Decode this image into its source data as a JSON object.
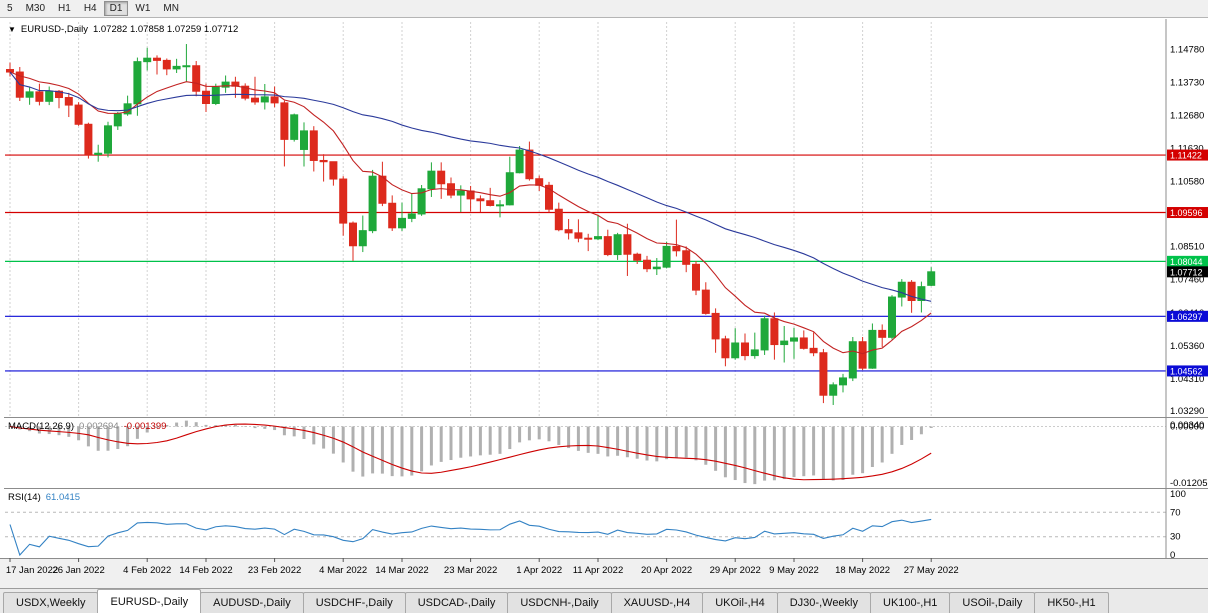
{
  "timeframe_toolbar": {
    "buttons": [
      {
        "label": "5",
        "active": false
      },
      {
        "label": "M30",
        "active": false
      },
      {
        "label": "H1",
        "active": false
      },
      {
        "label": "H4",
        "active": false
      },
      {
        "label": "D1",
        "active": true
      },
      {
        "label": "W1",
        "active": false
      },
      {
        "label": "MN",
        "active": false
      }
    ]
  },
  "main_chart": {
    "collapse_icon": "▼",
    "title": "EURUSD-,Daily",
    "ohlc_text": "1.07282 1.07858 1.07259 1.07712"
  },
  "price_axis_ticks": [
    "1.14780",
    "1.13730",
    "1.12680",
    "1.11630",
    "1.10580",
    "1.09530",
    "1.08510",
    "1.07460",
    "1.06410",
    "1.05360",
    "1.04310",
    "1.03290"
  ],
  "horizontal_levels": [
    {
      "price": 1.11422,
      "label": "1.11422",
      "color": "#d40000"
    },
    {
      "price": 1.09596,
      "label": "1.09596",
      "color": "#d40000"
    },
    {
      "price": 1.08044,
      "label": "1.08044",
      "color": "#00c24a"
    },
    {
      "price": 1.06297,
      "label": "1.06297",
      "color": "#0b0bd6"
    },
    {
      "price": 1.04562,
      "label": "1.04562",
      "color": "#0b0bd6"
    }
  ],
  "current_price_tag": {
    "label": "1.07712",
    "price": 1.07712,
    "color": "#000000"
  },
  "macd_panel": {
    "name": "MACD(12,26,9)",
    "main_value": "0.002694",
    "signal_value": "-0.001399",
    "axis_ticks": [
      "0.00340",
      "0.00000",
      "-0.01205"
    ]
  },
  "rsi_panel": {
    "name": "RSI(14)",
    "value": "61.0415",
    "axis_ticks": [
      "100",
      "70",
      "30",
      "0"
    ]
  },
  "bottom_tabs": [
    {
      "label": "USDX,Weekly",
      "active": false
    },
    {
      "label": "EURUSD-,Daily",
      "active": true
    },
    {
      "label": "AUDUSD-,Daily",
      "active": false
    },
    {
      "label": "USDCHF-,Daily",
      "active": false
    },
    {
      "label": "USDCAD-,Daily",
      "active": false
    },
    {
      "label": "USDCNH-,Daily",
      "active": false
    },
    {
      "label": "XAUUSD-,H4",
      "active": false
    },
    {
      "label": "UKOil-,H4",
      "active": false
    },
    {
      "label": "DJ30-,Weekly",
      "active": false
    },
    {
      "label": "UK100-,H1",
      "active": false
    },
    {
      "label": "USOil-,Daily",
      "active": false
    },
    {
      "label": "HK50-,H1",
      "active": false
    }
  ],
  "chart_data": {
    "type": "candlestick",
    "symbol": "EURUSD-",
    "timeframe": "Daily",
    "y_range": [
      1.0313,
      1.1565
    ],
    "colors": {
      "up": "#1fa83a",
      "down": "#dd2a1d"
    },
    "x_ticks": [
      {
        "i": 0,
        "label": "17 Jan 2022"
      },
      {
        "i": 7,
        "label": "26 Jan 2022"
      },
      {
        "i": 14,
        "label": "4 Feb 2022"
      },
      {
        "i": 20,
        "label": "14 Feb 2022"
      },
      {
        "i": 27,
        "label": "23 Feb 2022"
      },
      {
        "i": 34,
        "label": "4 Mar 2022"
      },
      {
        "i": 40,
        "label": "14 Mar 2022"
      },
      {
        "i": 47,
        "label": "23 Mar 2022"
      },
      {
        "i": 54,
        "label": "1 Apr 2022"
      },
      {
        "i": 60,
        "label": "11 Apr 2022"
      },
      {
        "i": 67,
        "label": "20 Apr 2022"
      },
      {
        "i": 74,
        "label": "29 Apr 2022"
      },
      {
        "i": 80,
        "label": "9 May 2022"
      },
      {
        "i": 87,
        "label": "18 May 2022"
      },
      {
        "i": 94,
        "label": "27 May 2022"
      }
    ],
    "overlays": [
      {
        "type": "ma",
        "period": 12,
        "method": "ema",
        "color": "#c22222"
      },
      {
        "type": "ma",
        "period": 40,
        "method": "sma",
        "color": "#2b3a9b"
      }
    ],
    "panes": [
      {
        "type": "macd",
        "fast": 12,
        "slow": 26,
        "signal": 9,
        "histogram_color": "#b0b0b0",
        "signal_color": "#cc0000",
        "last_values": [
          0.002694,
          -0.001399
        ]
      },
      {
        "type": "rsi",
        "period": 14,
        "color": "#3382c4",
        "levels": [
          70,
          30
        ],
        "last_value": 61.0415
      }
    ],
    "candles_ohlc": [
      [
        1.1414,
        1.1436,
        1.1392,
        1.1406
      ],
      [
        1.1406,
        1.1422,
        1.1314,
        1.1326
      ],
      [
        1.1326,
        1.1357,
        1.1302,
        1.1343
      ],
      [
        1.1343,
        1.1369,
        1.13,
        1.1313
      ],
      [
        1.1313,
        1.136,
        1.1301,
        1.1345
      ],
      [
        1.1345,
        1.1349,
        1.1291,
        1.1325
      ],
      [
        1.1325,
        1.134,
        1.1263,
        1.1301
      ],
      [
        1.1301,
        1.131,
        1.1235,
        1.124
      ],
      [
        1.124,
        1.1245,
        1.1131,
        1.1144
      ],
      [
        1.1144,
        1.1175,
        1.1121,
        1.1148
      ],
      [
        1.1148,
        1.1248,
        1.1135,
        1.1235
      ],
      [
        1.1235,
        1.1279,
        1.1222,
        1.1273
      ],
      [
        1.1273,
        1.1331,
        1.1267,
        1.1305
      ],
      [
        1.1305,
        1.1452,
        1.1267,
        1.1439
      ],
      [
        1.1439,
        1.1483,
        1.1411,
        1.145
      ],
      [
        1.145,
        1.1459,
        1.1398,
        1.1443
      ],
      [
        1.1443,
        1.1449,
        1.1396,
        1.1416
      ],
      [
        1.1416,
        1.1448,
        1.1403,
        1.1424
      ],
      [
        1.1424,
        1.1495,
        1.1375,
        1.1426
      ],
      [
        1.1426,
        1.1441,
        1.1329,
        1.1345
      ],
      [
        1.1345,
        1.1369,
        1.1279,
        1.1306
      ],
      [
        1.1306,
        1.1369,
        1.1301,
        1.1358
      ],
      [
        1.1358,
        1.1395,
        1.134,
        1.1374
      ],
      [
        1.1374,
        1.1391,
        1.1324,
        1.1361
      ],
      [
        1.1361,
        1.137,
        1.1316,
        1.1323
      ],
      [
        1.1323,
        1.1391,
        1.1302,
        1.1311
      ],
      [
        1.1311,
        1.1368,
        1.1287,
        1.1327
      ],
      [
        1.1327,
        1.136,
        1.1294,
        1.1308
      ],
      [
        1.1308,
        1.1315,
        1.1106,
        1.1192
      ],
      [
        1.1192,
        1.1274,
        1.1185,
        1.127
      ],
      [
        1.116,
        1.1246,
        1.1106,
        1.1219
      ],
      [
        1.1219,
        1.1234,
        1.109,
        1.1125
      ],
      [
        1.1125,
        1.1145,
        1.1058,
        1.1121
      ],
      [
        1.1121,
        1.1121,
        1.1045,
        1.1066
      ],
      [
        1.1066,
        1.1075,
        1.0886,
        1.0926
      ],
      [
        1.0926,
        1.0931,
        1.0806,
        1.0854
      ],
      [
        1.0854,
        1.095,
        1.0834,
        1.0902
      ],
      [
        1.0902,
        1.1095,
        1.0894,
        1.1075
      ],
      [
        1.1075,
        1.1121,
        1.098,
        1.0989
      ],
      [
        1.0989,
        1.1014,
        1.0901,
        1.0911
      ],
      [
        1.0911,
        1.0991,
        1.0901,
        1.0941
      ],
      [
        1.0941,
        1.102,
        1.0929,
        1.0955
      ],
      [
        1.0955,
        1.1047,
        1.0949,
        1.1035
      ],
      [
        1.1035,
        1.1119,
        1.1009,
        1.1091
      ],
      [
        1.1091,
        1.1119,
        1.1003,
        1.1051
      ],
      [
        1.1051,
        1.1071,
        1.1005,
        1.1015
      ],
      [
        1.1015,
        1.1046,
        1.0961,
        1.1028
      ],
      [
        1.1028,
        1.1044,
        1.0963,
        1.1003
      ],
      [
        1.1003,
        1.1014,
        1.0961,
        1.0997
      ],
      [
        1.0997,
        1.1038,
        1.0979,
        1.0982
      ],
      [
        1.0982,
        1.0999,
        1.0944,
        1.0984
      ],
      [
        1.0984,
        1.1137,
        1.0982,
        1.1086
      ],
      [
        1.1086,
        1.1171,
        1.1084,
        1.1158
      ],
      [
        1.1158,
        1.1185,
        1.1061,
        1.1067
      ],
      [
        1.1067,
        1.1077,
        1.1028,
        1.1046
      ],
      [
        1.1046,
        1.1057,
        1.096,
        1.097
      ],
      [
        1.097,
        1.0991,
        1.09,
        1.0905
      ],
      [
        1.0905,
        1.0939,
        1.0874,
        1.0895
      ],
      [
        1.0895,
        1.0938,
        1.0865,
        1.0878
      ],
      [
        1.0878,
        1.0892,
        1.0837,
        1.0876
      ],
      [
        1.0876,
        1.095,
        1.0872,
        1.0883
      ],
      [
        1.0883,
        1.0905,
        1.0821,
        1.0826
      ],
      [
        1.0826,
        1.0895,
        1.0809,
        1.0889
      ],
      [
        1.0889,
        1.0924,
        1.0758,
        1.0827
      ],
      [
        1.0827,
        1.0832,
        1.0796,
        1.0808
      ],
      [
        1.0808,
        1.0822,
        1.077,
        1.0781
      ],
      [
        1.0781,
        1.0815,
        1.0761,
        1.0786
      ],
      [
        1.0786,
        1.0867,
        1.0782,
        1.0852
      ],
      [
        1.0852,
        1.0937,
        1.082,
        1.0838
      ],
      [
        1.0838,
        1.0852,
        1.077,
        1.0795
      ],
      [
        1.0795,
        1.0805,
        1.0697,
        1.0713
      ],
      [
        1.0713,
        1.0738,
        1.0635,
        1.0639
      ],
      [
        1.0639,
        1.0655,
        1.0514,
        1.0558
      ],
      [
        1.0558,
        1.0568,
        1.0471,
        1.0498
      ],
      [
        1.0498,
        1.0592,
        1.0492,
        1.0545
      ],
      [
        1.0545,
        1.0575,
        1.049,
        1.0505
      ],
      [
        1.0505,
        1.0578,
        1.0495,
        1.0523
      ],
      [
        1.0523,
        1.0632,
        1.0507,
        1.0622
      ],
      [
        1.0622,
        1.0642,
        1.0492,
        1.054
      ],
      [
        1.054,
        1.0599,
        1.0483,
        1.0551
      ],
      [
        1.0551,
        1.0593,
        1.0495,
        1.0561
      ],
      [
        1.0561,
        1.0585,
        1.0524,
        1.0528
      ],
      [
        1.0528,
        1.0579,
        1.0503,
        1.0514
      ],
      [
        1.0514,
        1.0526,
        1.0354,
        1.0379
      ],
      [
        1.0379,
        1.042,
        1.0348,
        1.0412
      ],
      [
        1.0412,
        1.0447,
        1.0388,
        1.0434
      ],
      [
        1.0434,
        1.0564,
        1.0424,
        1.0549
      ],
      [
        1.0549,
        1.0564,
        1.0459,
        1.0465
      ],
      [
        1.0465,
        1.0607,
        1.0463,
        1.0585
      ],
      [
        1.0585,
        1.0604,
        1.0532,
        1.0563
      ],
      [
        1.0563,
        1.0697,
        1.0556,
        1.0691
      ],
      [
        1.0691,
        1.0748,
        1.0661,
        1.0738
      ],
      [
        1.0738,
        1.0745,
        1.0641,
        1.068
      ],
      [
        1.068,
        1.074,
        1.0642,
        1.0724
      ],
      [
        1.07282,
        1.07858,
        1.07259,
        1.07712
      ]
    ]
  }
}
